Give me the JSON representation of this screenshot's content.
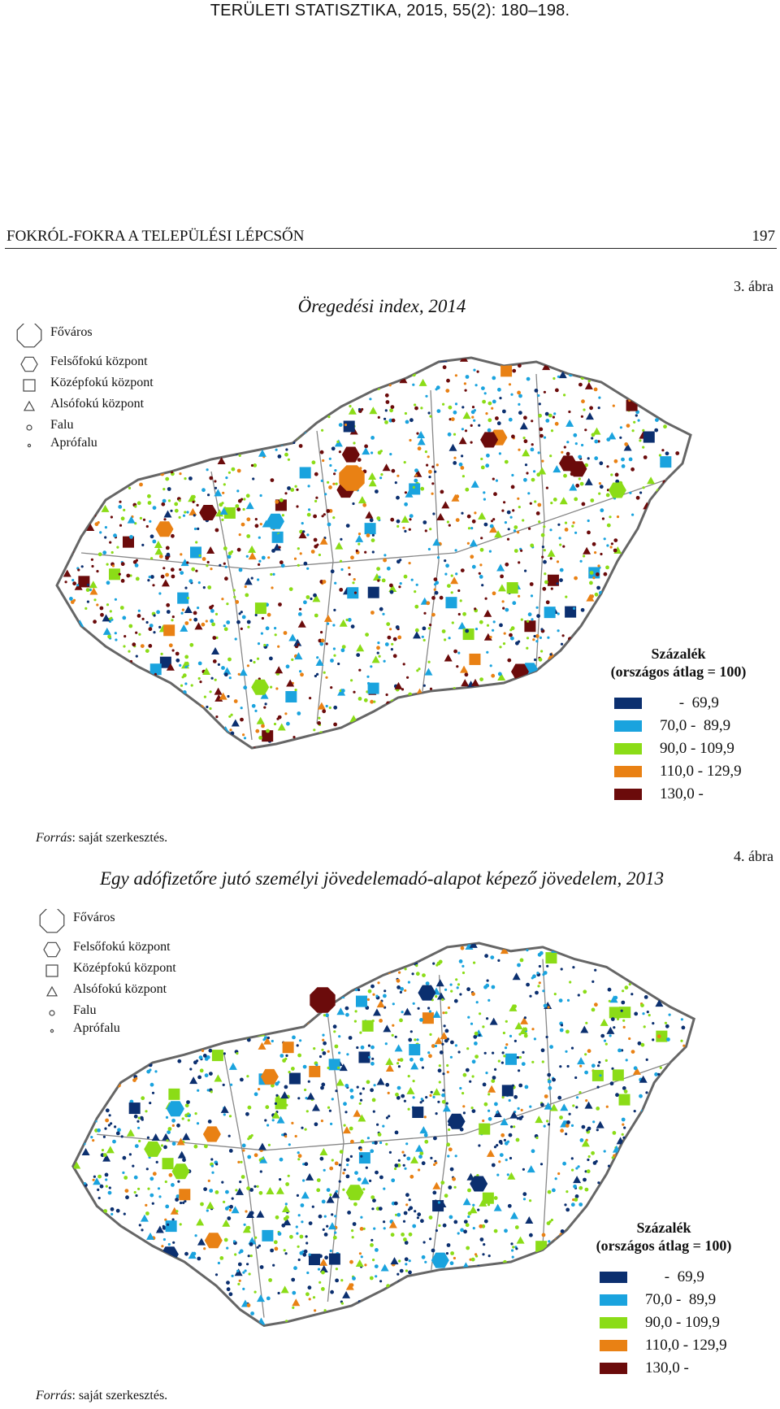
{
  "header": {
    "journal": "TERÜLETI STATISZTIKA, 2015, 55(2): 180–198.",
    "running_head": "FOKRÓL-FOKRA A TELEPÜLÉSI LÉPCSŐN",
    "page_number": "197"
  },
  "figures": [
    {
      "label": "3. ábra",
      "title": "Öregedési index, 2014",
      "source_label": "Forrás",
      "source_text": ": saját szerkesztés.",
      "symbol_key": [
        "Főváros",
        "Felsőfokú központ",
        "Középfokú központ",
        "Alsófokú központ",
        "Falu",
        "Aprófalu"
      ],
      "legend_title_1": "Százalék",
      "legend_title_2": "(országos átlag = 100)",
      "classes": [
        {
          "range": "     -  69,9",
          "color": "#0b2f6f"
        },
        {
          "range": "70,0 -  89,9",
          "color": "#1aa3de"
        },
        {
          "range": "90,0 - 109,9",
          "color": "#8bdc17"
        },
        {
          "range": "110,0 - 129,9",
          "color": "#e98114"
        },
        {
          "range": "130,0 -",
          "color": "#6b0b0b"
        }
      ]
    },
    {
      "label": "4. ábra",
      "title": "Egy adófizetőre jutó személyi jövedelemadó-alapot képező jövedelem, 2013",
      "source_label": "Forrás",
      "source_text": ": saját szerkesztés.",
      "symbol_key": [
        "Főváros",
        "Felsőfokú központ",
        "Középfokú központ",
        "Alsófokú központ",
        "Falu",
        "Aprófalu"
      ],
      "legend_title_1": "Százalék",
      "legend_title_2": "(országos átlag = 100)",
      "classes": [
        {
          "range": "     -  69,9",
          "color": "#0b2f6f"
        },
        {
          "range": "70,0 -  89,9",
          "color": "#1aa3de"
        },
        {
          "range": "90,0 - 109,9",
          "color": "#8bdc17"
        },
        {
          "range": "110,0 - 129,9",
          "color": "#e98114"
        },
        {
          "range": "130,0 -",
          "color": "#6b0b0b"
        }
      ]
    }
  ]
}
